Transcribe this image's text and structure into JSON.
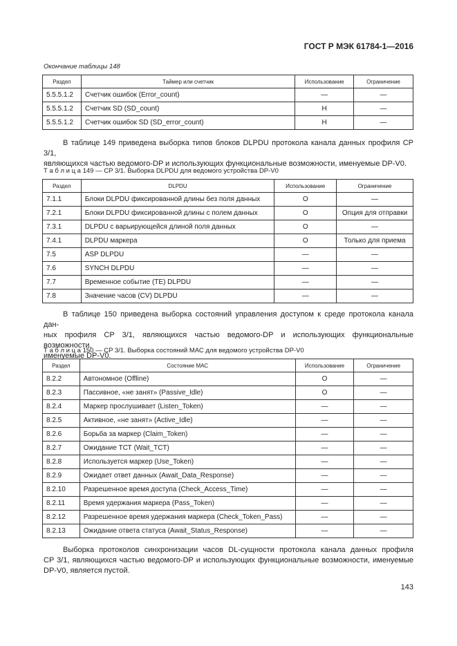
{
  "header": {
    "standard": "ГОСТ Р МЭК 61784-1—2016"
  },
  "tables": [
    {
      "caption": "Окончание таблицы 148",
      "columns": [
        "Раздел",
        "Таймер или счетчик",
        "Использование",
        "Ограничение"
      ],
      "rows": [
        [
          "5.5.5.1.2",
          "Счетчик ошибок (Error_count)",
          "—",
          "—"
        ],
        [
          "5.5.5.1.2",
          "Счетчик SD (SD_count)",
          "Н",
          "—"
        ],
        [
          "5.5.5.1.2",
          "Счетчик ошибок SD (SD_error_count)",
          "Н",
          "—"
        ]
      ]
    },
    {
      "caption": "Т а б л и ц а  149 — CP 3/1. Выборка DLPDU для ведомого устройства DP-V0",
      "columns": [
        "Раздел",
        "DLPDU",
        "Использование",
        "Ограничение"
      ],
      "rows": [
        [
          "7.1.1",
          "Блоки DLPDU фиксированной длины без поля данных",
          "О",
          "—"
        ],
        [
          "7.2.1",
          "Блоки DLPDU фиксированной длины с полем данных",
          "О",
          "Опция для отправки"
        ],
        [
          "7.3.1",
          "DLPDU с варьирующейся длиной поля данных",
          "О",
          "—"
        ],
        [
          "7.4.1",
          "DLPDU маркера",
          "О",
          "Только для приема"
        ],
        [
          "7.5",
          "ASP DLPDU",
          "—",
          "—"
        ],
        [
          "7.6",
          "SYNCH DLPDU",
          "—",
          "—"
        ],
        [
          "7.7",
          "Временное событие (TE) DLPDU",
          "—",
          "—"
        ],
        [
          "7.8",
          "Значение часов (CV) DLPDU",
          "—",
          "—"
        ]
      ]
    },
    {
      "caption": "Т а б л и ц а  150 — CP 3/1. Выборка состояний МАС для ведомого устройства DP-V0",
      "columns": [
        "Раздел",
        "Состояние МАС",
        "Использование",
        "Ограничение"
      ],
      "rows": [
        [
          "8.2.2",
          "Автономное (Offline)",
          "О",
          "—"
        ],
        [
          "8.2.3",
          "Пассивное, «не занят» (Passive_Idle)",
          "О",
          "—"
        ],
        [
          "8.2.4",
          "Маркер прослушивает (Listen_Token)",
          "—",
          "—"
        ],
        [
          "8.2.5",
          "Активное, «не занят» (Active_Idle)",
          "—",
          "—"
        ],
        [
          "8.2.6",
          "Борьба за маркер (Claim_Token)",
          "—",
          "—"
        ],
        [
          "8.2.7",
          "Ожидание ТСТ (Wait_TCT)",
          "—",
          "—"
        ],
        [
          "8.2.8",
          "Используется маркер (Use_Token)",
          "—",
          "—"
        ],
        [
          "8.2.9",
          "Ожидает ответ данных (Await_Data_Response)",
          "—",
          "—"
        ],
        [
          "8.2.10",
          "Разрешенное время доступа (Check_Access_Time)",
          "—",
          "—"
        ],
        [
          "8.2.11",
          "Время удержания маркера (Pass_Token)",
          "—",
          "—"
        ],
        [
          "8.2.12",
          "Разрешенное время удержания маркера (Check_Token_Pass)",
          "—",
          "—"
        ],
        [
          "8.2.13",
          "Ожидание ответа статуса (Await_Status_Response)",
          "—",
          "—"
        ]
      ]
    }
  ],
  "paragraphs": [
    {
      "lines": [
        "В таблице 149 приведена выборка типов блоков DLPDU протокола канала данных профиля CP 3/1,",
        "являющихся частью ведомого-DP и использующих функциональные возможности, именуемые DP-V0."
      ]
    },
    {
      "lines": [
        "В таблице 150 приведена выборка состояний управления доступом к среде протокола канала дан-",
        "ных профиля CP 3/1, являющихся частью ведомого-DP и использующих функциональные возможности,",
        "именуемые DP-V0."
      ]
    },
    {
      "lines": [
        "Выборка протоколов синхронизации часов DL-сущности протокола канала данных профиля",
        "CP 3/1, являющихся частью ведомого-DP и использующих функциональные возможности, именуемые",
        "DP-V0, является пустой."
      ]
    }
  ],
  "page_number": "143"
}
